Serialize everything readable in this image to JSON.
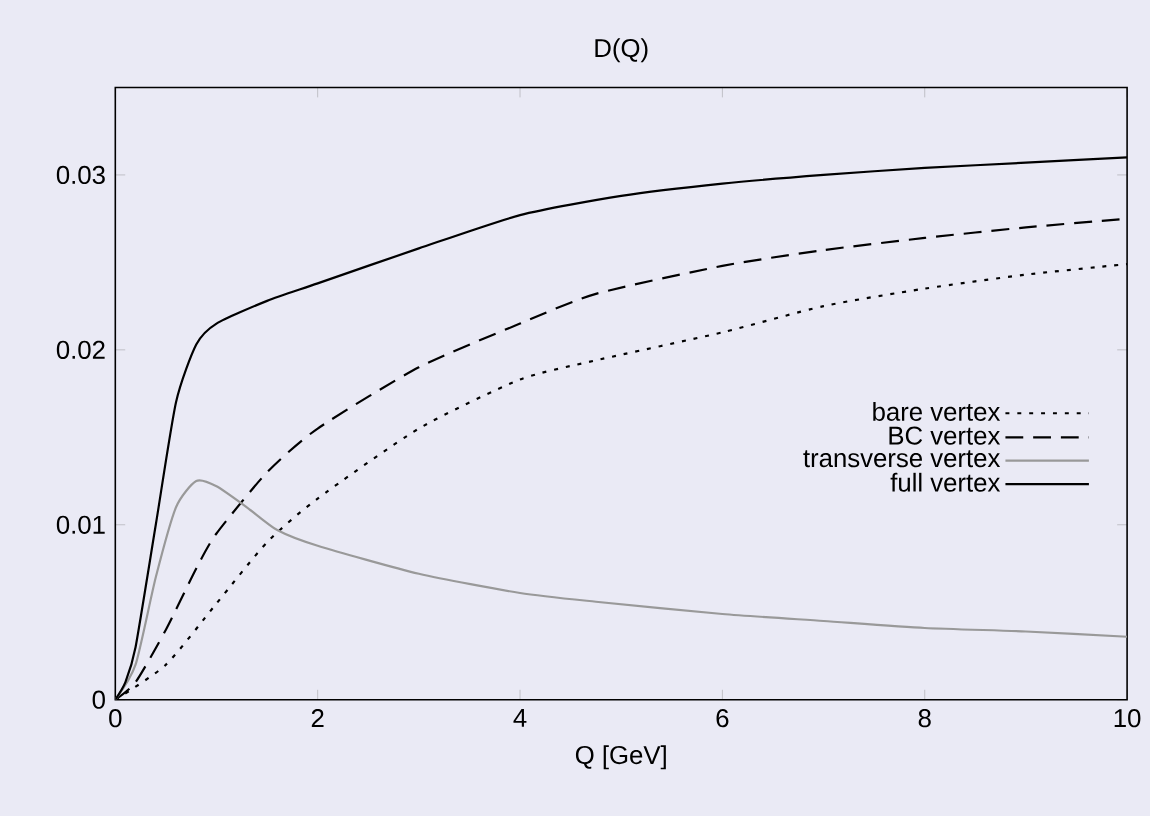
{
  "chart_data": {
    "type": "line",
    "title": "D(Q)",
    "xlabel": "Q [GeV]",
    "xlim": [
      0,
      10
    ],
    "ylim": [
      0,
      0.035
    ],
    "xticks": [
      0,
      2,
      4,
      6,
      8,
      10
    ],
    "yticks": [
      0,
      0.01,
      0.02,
      0.03
    ],
    "grid": false,
    "legend": "right",
    "marker": "none",
    "series": [
      {
        "name": "bare vertex",
        "color": "#000000",
        "line_style": "dotted",
        "x": [
          0,
          0.5,
          1,
          1.5,
          2,
          3,
          4,
          4.75,
          6,
          7,
          8,
          9,
          10
        ],
        "values": [
          0,
          0.002,
          0.0055,
          0.009,
          0.0115,
          0.0155,
          0.0183,
          0.0194,
          0.021,
          0.0225,
          0.0235,
          0.0243,
          0.0249
        ]
      },
      {
        "name": "BC vertex",
        "color": "#000000",
        "line_style": "dashed",
        "x": [
          0,
          0.2,
          0.5,
          0.8,
          1,
          1.5,
          2,
          3,
          4,
          4.75,
          6,
          7,
          8,
          9,
          10
        ],
        "values": [
          0,
          0.001,
          0.004,
          0.0075,
          0.0095,
          0.013,
          0.0155,
          0.019,
          0.0215,
          0.0232,
          0.0248,
          0.0257,
          0.0264,
          0.027,
          0.0275
        ]
      },
      {
        "name": "transverse vertex",
        "color": "#999999",
        "line_style": "solid",
        "x": [
          0,
          0.2,
          0.4,
          0.6,
          0.8,
          1,
          1.3,
          1.6,
          2,
          3,
          4,
          4.75,
          6,
          7,
          8,
          9,
          10
        ],
        "values": [
          0,
          0.002,
          0.007,
          0.011,
          0.0125,
          0.0122,
          0.011,
          0.0097,
          0.0088,
          0.0072,
          0.0061,
          0.0056,
          0.0049,
          0.0045,
          0.0041,
          0.0039,
          0.0036
        ]
      },
      {
        "name": "full vertex",
        "color": "#000000",
        "line_style": "solid",
        "x": [
          0,
          0.1,
          0.2,
          0.4,
          0.6,
          0.8,
          1,
          1.5,
          2,
          3,
          4,
          5,
          6,
          7,
          8,
          9,
          10
        ],
        "values": [
          0,
          0.001,
          0.003,
          0.01,
          0.017,
          0.0203,
          0.0215,
          0.0228,
          0.0238,
          0.0258,
          0.0277,
          0.0288,
          0.0295,
          0.03,
          0.0304,
          0.0307,
          0.031
        ]
      }
    ]
  }
}
